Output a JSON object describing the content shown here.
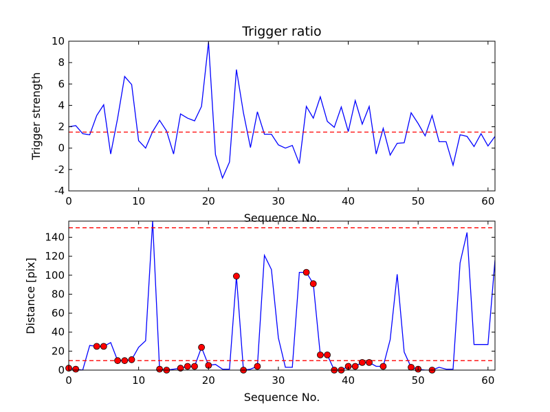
{
  "colors": {
    "line": "#0000ff",
    "threshold": "#ff0000",
    "marker_fill": "#ff0000",
    "marker_edge": "#000000",
    "axes": "#000000",
    "background": "#ffffff"
  },
  "chart_data": [
    {
      "type": "line",
      "title": "Trigger ratio",
      "xlabel": "Sequence No.",
      "ylabel": "Trigger strength",
      "xlim": [
        0,
        61
      ],
      "ylim": [
        -4,
        10
      ],
      "xticks": [
        0,
        10,
        20,
        30,
        40,
        50,
        60
      ],
      "yticks": [
        -4,
        -2,
        0,
        2,
        4,
        6,
        8,
        10
      ],
      "grid": false,
      "series": [
        {
          "style": "solid",
          "x": [
            0,
            1,
            2,
            3,
            4,
            5,
            6,
            7,
            8,
            9,
            10,
            11,
            12,
            13,
            14,
            15,
            16,
            17,
            18,
            19,
            20,
            21,
            22,
            23,
            24,
            25,
            26,
            27,
            28,
            29,
            30,
            31,
            32,
            33,
            34,
            35,
            36,
            37,
            38,
            39,
            40,
            41,
            42,
            43,
            44,
            45,
            46,
            47,
            48,
            49,
            50,
            51,
            52,
            53,
            54,
            55,
            56,
            57,
            58,
            59,
            60,
            61
          ],
          "values": [
            2.0,
            2.1,
            1.35,
            1.25,
            3.05,
            4.05,
            -0.55,
            2.8,
            6.7,
            5.95,
            0.7,
            0.0,
            1.55,
            2.6,
            1.6,
            -0.55,
            3.2,
            2.8,
            2.55,
            3.9,
            9.9,
            -0.6,
            -2.8,
            -1.3,
            7.35,
            3.3,
            0.05,
            3.4,
            1.3,
            1.3,
            0.3,
            0.0,
            0.25,
            -1.45,
            3.9,
            2.8,
            4.8,
            2.5,
            1.95,
            3.85,
            1.55,
            4.45,
            2.25,
            3.9,
            -0.55,
            1.85,
            -0.65,
            0.45,
            0.5,
            3.3,
            2.3,
            1.15,
            3.05,
            0.6,
            0.6,
            -1.6,
            1.25,
            1.1,
            0.15,
            1.35,
            0.2,
            1.1
          ]
        },
        {
          "style": "dashed",
          "x": [
            0,
            61
          ],
          "values": [
            1.5,
            1.5
          ]
        }
      ]
    },
    {
      "type": "line",
      "title": "",
      "xlabel": "Sequence No.",
      "ylabel": "Distance [pix]",
      "xlim": [
        0,
        61
      ],
      "ylim": [
        0,
        157
      ],
      "xticks": [
        0,
        10,
        20,
        30,
        40,
        50,
        60
      ],
      "yticks": [
        0,
        20,
        40,
        60,
        80,
        100,
        120,
        140
      ],
      "grid": false,
      "series": [
        {
          "style": "solid",
          "x": [
            0,
            1,
            2,
            3,
            4,
            5,
            6,
            7,
            8,
            9,
            10,
            11,
            12,
            13,
            14,
            15,
            16,
            17,
            18,
            19,
            20,
            21,
            22,
            23,
            24,
            25,
            26,
            27,
            28,
            29,
            30,
            31,
            32,
            33,
            34,
            35,
            36,
            37,
            38,
            39,
            40,
            41,
            42,
            43,
            44,
            45,
            46,
            47,
            48,
            49,
            50,
            51,
            52,
            53,
            54,
            55,
            56,
            57,
            58,
            59,
            60,
            61
          ],
          "values": [
            2,
            1,
            0,
            26,
            25,
            25,
            29,
            10,
            10,
            11,
            24,
            31,
            157,
            1,
            0,
            1,
            2,
            4,
            4,
            24,
            5,
            6,
            1,
            1,
            99,
            0,
            1,
            4,
            121,
            106,
            34,
            3,
            3,
            103,
            103,
            91,
            16,
            16,
            0,
            0,
            4,
            4,
            8,
            8,
            4,
            4,
            32,
            101,
            19,
            3,
            1,
            0,
            0,
            3,
            1,
            1,
            113,
            145,
            27,
            27,
            27,
            116
          ]
        },
        {
          "style": "markers",
          "x": [
            0,
            1,
            4,
            5,
            7,
            8,
            9,
            13,
            14,
            16,
            17,
            18,
            19,
            20,
            24,
            25,
            27,
            34,
            35,
            36,
            37,
            38,
            39,
            40,
            41,
            42,
            43,
            45,
            49,
            50,
            52
          ],
          "values": [
            2,
            1,
            25,
            25,
            10,
            10,
            11,
            1,
            0,
            2,
            4,
            4,
            24,
            5,
            99,
            0,
            4,
            103,
            91,
            16,
            16,
            0,
            0,
            4,
            4,
            8,
            8,
            4,
            3,
            1,
            0
          ]
        },
        {
          "style": "dashed",
          "x": [
            0,
            61
          ],
          "values": [
            150,
            150
          ]
        },
        {
          "style": "dashed",
          "x": [
            0,
            61
          ],
          "values": [
            10,
            10
          ]
        }
      ]
    }
  ]
}
